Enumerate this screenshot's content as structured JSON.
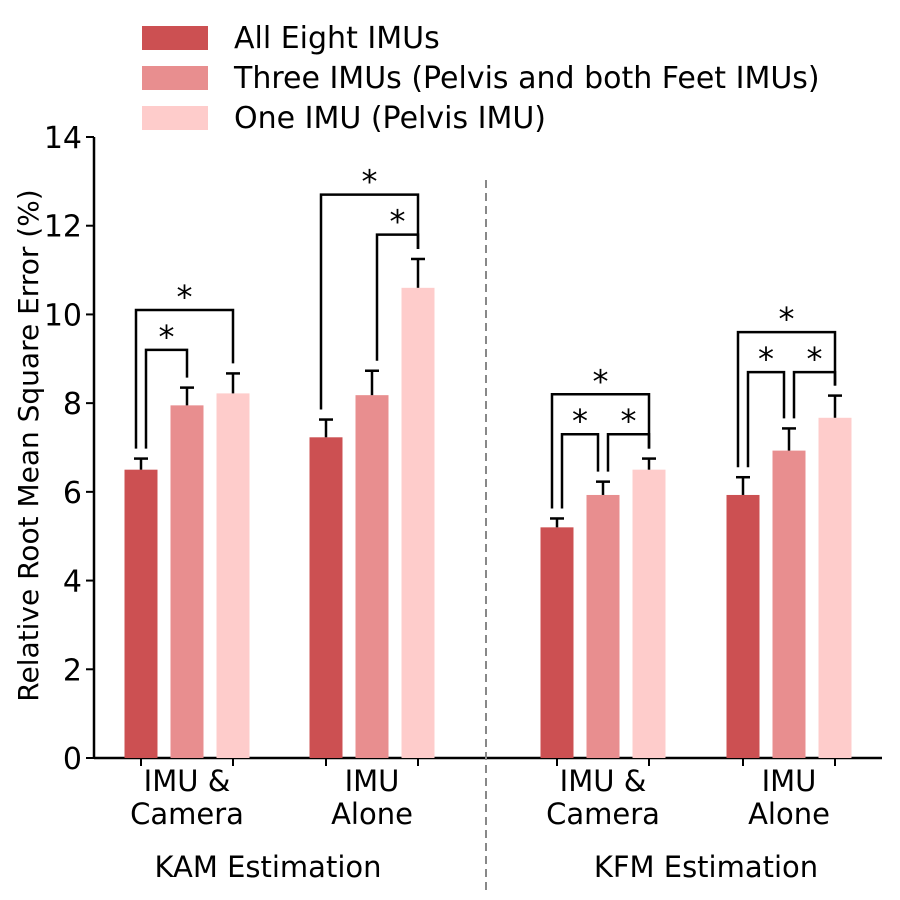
{
  "chart_data": {
    "type": "bar",
    "ylabel": "Relative Root Mean Square Error (%)",
    "ylim": [
      0,
      14
    ],
    "yticks": [
      0,
      2,
      4,
      6,
      8,
      10,
      12,
      14
    ],
    "legend_position": "top",
    "series": [
      {
        "name": "All Eight IMUs",
        "color": "#cc5052"
      },
      {
        "name": "Three IMUs (Pelvis and both Feet IMUs)",
        "color": "#e88e8f"
      },
      {
        "name": "One IMU (Pelvis IMU)",
        "color": "#fecccb"
      }
    ],
    "groups": [
      {
        "section": "KAM Estimation",
        "label": [
          "IMU &",
          "Camera"
        ],
        "values": [
          6.5,
          7.95,
          8.22
        ],
        "errors": [
          0.25,
          0.4,
          0.45
        ]
      },
      {
        "section": "KAM Estimation",
        "label": [
          "IMU",
          "Alone"
        ],
        "values": [
          7.23,
          8.18,
          10.6
        ],
        "errors": [
          0.4,
          0.55,
          0.65
        ]
      },
      {
        "section": "KFM Estimation",
        "label": [
          "IMU &",
          "Camera"
        ],
        "values": [
          5.2,
          5.93,
          6.5
        ],
        "errors": [
          0.2,
          0.3,
          0.25
        ]
      },
      {
        "section": "KFM Estimation",
        "label": [
          "IMU",
          "Alone"
        ],
        "values": [
          5.93,
          6.93,
          7.67
        ],
        "errors": [
          0.4,
          0.5,
          0.5
        ]
      }
    ],
    "sections": [
      "KAM Estimation",
      "KFM Estimation"
    ],
    "significance": [
      {
        "group": 0,
        "from": 0,
        "to": 1,
        "level": 9.2,
        "mark": "*"
      },
      {
        "group": 0,
        "from": 0,
        "to": 2,
        "level": 10.1,
        "mark": "*"
      },
      {
        "group": 1,
        "from": 1,
        "to": 2,
        "level": 11.8,
        "mark": "*"
      },
      {
        "group": 1,
        "from": 0,
        "to": 2,
        "level": 12.7,
        "mark": "*"
      },
      {
        "group": 2,
        "from": 0,
        "to": 1,
        "level": 7.3,
        "mark": "*"
      },
      {
        "group": 2,
        "from": 1,
        "to": 2,
        "level": 7.3,
        "mark": "*"
      },
      {
        "group": 2,
        "from": 0,
        "to": 2,
        "level": 8.2,
        "mark": "*"
      },
      {
        "group": 3,
        "from": 0,
        "to": 1,
        "level": 8.7,
        "mark": "*"
      },
      {
        "group": 3,
        "from": 1,
        "to": 2,
        "level": 8.7,
        "mark": "*"
      },
      {
        "group": 3,
        "from": 0,
        "to": 2,
        "level": 9.6,
        "mark": "*"
      }
    ]
  }
}
